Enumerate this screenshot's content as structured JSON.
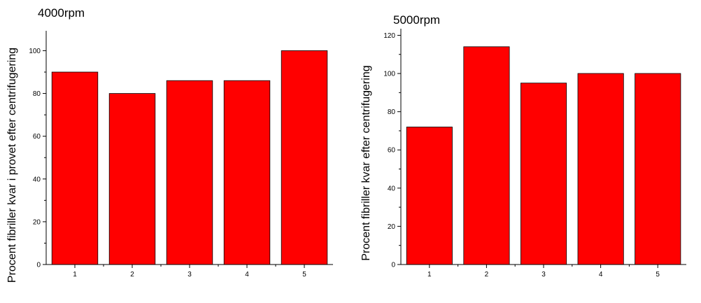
{
  "chart_data": [
    {
      "type": "bar",
      "title": "4000rpm",
      "xlabel": "",
      "ylabel": "Procent fibriller kvar i provet efter centrifugering",
      "categories": [
        "1",
        "2",
        "3",
        "4",
        "5"
      ],
      "values": [
        90,
        80,
        86,
        86,
        100
      ],
      "ylim": [
        0,
        108
      ],
      "yticks": [
        "0",
        "20",
        "40",
        "60",
        "80",
        "100"
      ],
      "grid": false,
      "bar_color": "#ff0000"
    },
    {
      "type": "bar",
      "title": "5000rpm",
      "xlabel": "",
      "ylabel": "Procent fibriller kvar efter centrifugering",
      "categories": [
        "1",
        "2",
        "3",
        "4",
        "5"
      ],
      "values": [
        72,
        114,
        95,
        100,
        100
      ],
      "ylim": [
        0,
        122
      ],
      "yticks": [
        "0",
        "20",
        "40",
        "60",
        "80",
        "100",
        "120"
      ],
      "grid": false,
      "bar_color": "#ff0000"
    }
  ]
}
